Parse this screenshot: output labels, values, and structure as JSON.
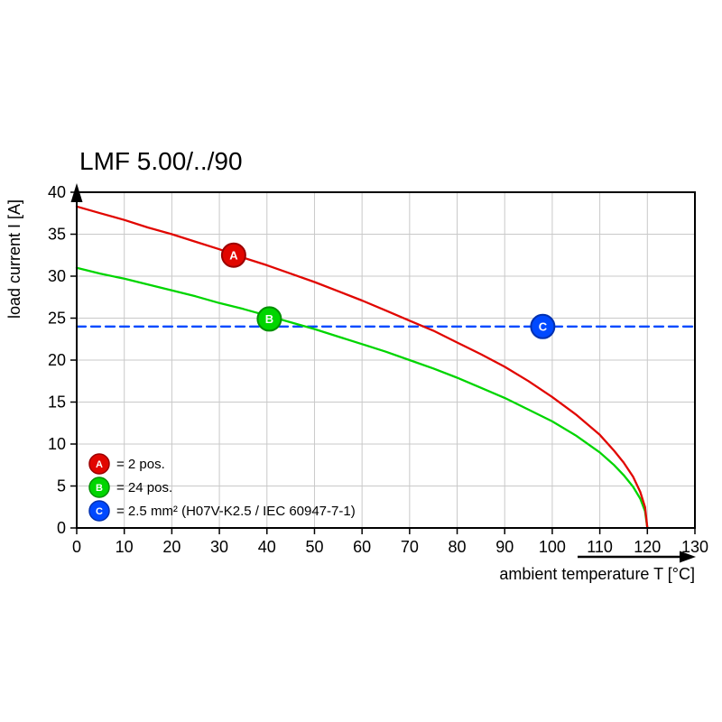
{
  "chart_data": {
    "type": "line",
    "title": "LMF 5.00/../90",
    "xlabel": "ambient temperature T [°C]",
    "ylabel": "load current I [A]",
    "xlim": [
      0,
      130
    ],
    "ylim": [
      0,
      40
    ],
    "x_ticks": [
      0,
      10,
      20,
      30,
      40,
      50,
      60,
      70,
      80,
      90,
      100,
      110,
      120,
      130
    ],
    "y_ticks": [
      0,
      5,
      10,
      15,
      20,
      25,
      30,
      35,
      40
    ],
    "grid": true,
    "grid_color": "#c9c9c9",
    "legend_position": "inside-bottom-left",
    "series": [
      {
        "name": "A",
        "legend": "= 2 pos.",
        "color": "#e10600",
        "stroke_color": "#9b0000",
        "dashed": false,
        "marker_at": [
          33,
          32.5
        ],
        "points": [
          [
            0,
            38.3
          ],
          [
            5,
            37.5
          ],
          [
            10,
            36.7
          ],
          [
            15,
            35.8
          ],
          [
            20,
            35.0
          ],
          [
            25,
            34.1
          ],
          [
            30,
            33.2
          ],
          [
            35,
            32.2
          ],
          [
            40,
            31.3
          ],
          [
            45,
            30.3
          ],
          [
            50,
            29.3
          ],
          [
            55,
            28.2
          ],
          [
            60,
            27.1
          ],
          [
            65,
            25.9
          ],
          [
            70,
            24.7
          ],
          [
            75,
            23.5
          ],
          [
            80,
            22.1
          ],
          [
            85,
            20.7
          ],
          [
            90,
            19.2
          ],
          [
            95,
            17.5
          ],
          [
            100,
            15.6
          ],
          [
            105,
            13.5
          ],
          [
            110,
            11.1
          ],
          [
            113,
            9.2
          ],
          [
            115,
            7.8
          ],
          [
            117,
            6.1
          ],
          [
            118.5,
            4.3
          ],
          [
            119.5,
            2.5
          ],
          [
            120,
            0
          ]
        ]
      },
      {
        "name": "B",
        "legend": "= 24 pos.",
        "color": "#00d500",
        "stroke_color": "#008f00",
        "dashed": false,
        "marker_at": [
          40.5,
          24.9
        ],
        "points": [
          [
            0,
            31.0
          ],
          [
            5,
            30.3
          ],
          [
            10,
            29.7
          ],
          [
            15,
            29.0
          ],
          [
            20,
            28.3
          ],
          [
            25,
            27.6
          ],
          [
            30,
            26.8
          ],
          [
            35,
            26.1
          ],
          [
            40,
            25.3
          ],
          [
            45,
            24.5
          ],
          [
            50,
            23.7
          ],
          [
            55,
            22.8
          ],
          [
            60,
            21.9
          ],
          [
            65,
            21.0
          ],
          [
            70,
            20.0
          ],
          [
            75,
            19.0
          ],
          [
            80,
            17.9
          ],
          [
            85,
            16.7
          ],
          [
            90,
            15.5
          ],
          [
            95,
            14.1
          ],
          [
            100,
            12.7
          ],
          [
            105,
            11.0
          ],
          [
            110,
            9.0
          ],
          [
            113,
            7.5
          ],
          [
            115,
            6.3
          ],
          [
            117,
            4.9
          ],
          [
            118.5,
            3.5
          ],
          [
            119.5,
            2.0
          ],
          [
            120,
            0
          ]
        ]
      },
      {
        "name": "C",
        "legend": "= 2.5 mm² (H07V-K2.5 / IEC 60947-7-1)",
        "color": "#0049ff",
        "stroke_color": "#0030b0",
        "dashed": true,
        "marker_at": [
          98,
          24
        ],
        "points": [
          [
            0,
            24
          ],
          [
            130,
            24
          ]
        ]
      }
    ]
  }
}
